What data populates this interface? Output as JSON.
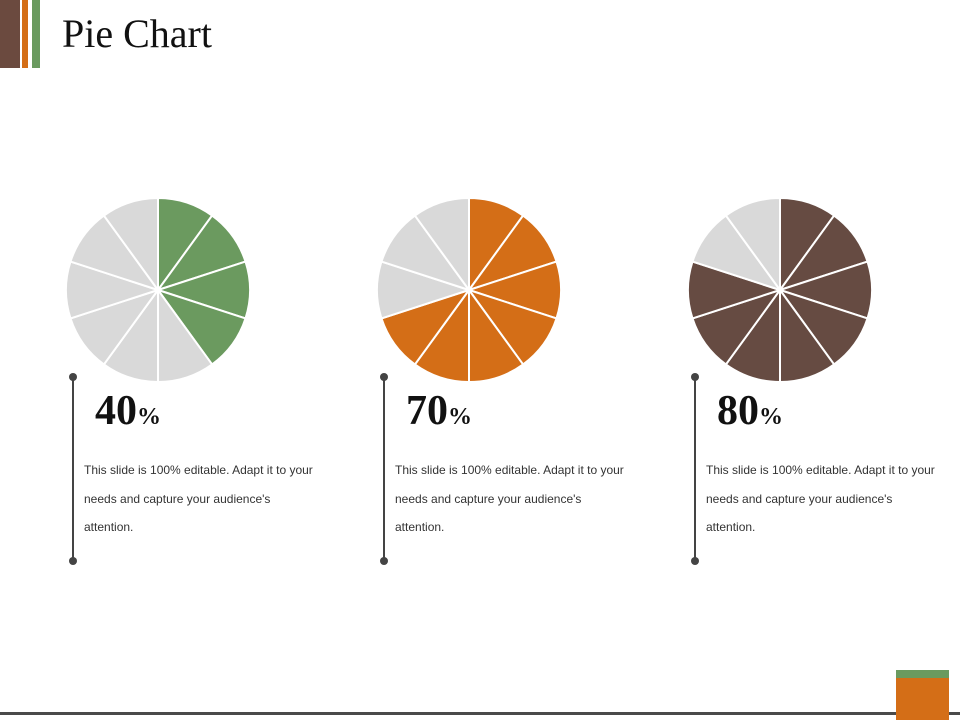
{
  "title": "Pie Chart",
  "colors": {
    "accent_bars": [
      "#6b4a3f",
      "#d46e17",
      "#6a9a5f"
    ],
    "inactive_slice": "#d9d9d9",
    "slice_separator": "#ffffff"
  },
  "chart_data": [
    {
      "type": "pie",
      "segments": 10,
      "filled_segments": 4,
      "value": 40,
      "value_label": "40",
      "unit": "%",
      "color": "#6b9a5f",
      "description": "This slide is 100% editable. Adapt it to your needs and capture your audience's attention."
    },
    {
      "type": "pie",
      "segments": 10,
      "filled_segments": 7,
      "value": 70,
      "value_label": "70",
      "unit": "%",
      "color": "#d46e17",
      "description": "This slide is 100% editable. Adapt it to your needs and capture your audience's attention."
    },
    {
      "type": "pie",
      "segments": 10,
      "filled_segments": 8,
      "value": 80,
      "value_label": "80",
      "unit": "%",
      "color": "#664b42",
      "description": "This slide is 100% editable. Adapt it to your needs and capture your audience's attention."
    }
  ]
}
